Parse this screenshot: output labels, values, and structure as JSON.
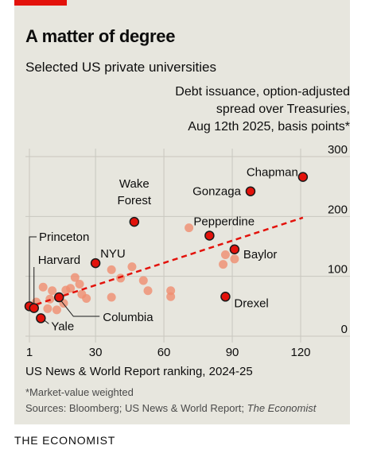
{
  "header": {
    "title": "A matter of degree",
    "subtitle": "Selected US private universities"
  },
  "chart_data": {
    "type": "scatter",
    "title": "A matter of degree",
    "subtitle": "Selected US private universities",
    "ylabel_lines": [
      "Debt issuance, option-adjusted",
      "spread over Treasuries,",
      "Aug 12th 2025, basis points*"
    ],
    "xlabel": "US News & World Report ranking, 2024-25",
    "xlim": [
      0,
      130
    ],
    "ylim": [
      0,
      300
    ],
    "x_ticks": [
      1,
      30,
      60,
      90,
      120
    ],
    "x_tick_labels": [
      "1",
      "30",
      "60",
      "90",
      "120"
    ],
    "y_ticks": [
      0,
      100,
      200,
      300
    ],
    "y_tick_labels": [
      "0",
      "100",
      "200",
      "300"
    ],
    "grid": true,
    "y_axis_side": "right",
    "highlighted_points": [
      {
        "label": "Chapman",
        "x": 121,
        "y": 266
      },
      {
        "label": "Gonzaga",
        "x": 98,
        "y": 242
      },
      {
        "label": "Wake Forest",
        "x": 47,
        "y": 191
      },
      {
        "label": "Pepperdine",
        "x": 80,
        "y": 168
      },
      {
        "label": "Baylor",
        "x": 91,
        "y": 145
      },
      {
        "label": "NYU",
        "x": 30,
        "y": 122
      },
      {
        "label": "Drexel",
        "x": 87,
        "y": 66
      },
      {
        "label": "Princeton",
        "x": 1,
        "y": 50
      },
      {
        "label": "Harvard",
        "x": 3,
        "y": 47
      },
      {
        "label": "Columbia",
        "x": 14,
        "y": 65
      },
      {
        "label": "Yale",
        "x": 6,
        "y": 30
      }
    ],
    "other_points": [
      {
        "x": 71,
        "y": 181
      },
      {
        "x": 87,
        "y": 136
      },
      {
        "x": 91,
        "y": 129
      },
      {
        "x": 86,
        "y": 120
      },
      {
        "x": 46,
        "y": 116
      },
      {
        "x": 37,
        "y": 111
      },
      {
        "x": 41,
        "y": 97
      },
      {
        "x": 51,
        "y": 93
      },
      {
        "x": 21,
        "y": 98
      },
      {
        "x": 23,
        "y": 87
      },
      {
        "x": 19,
        "y": 80
      },
      {
        "x": 7,
        "y": 82
      },
      {
        "x": 11,
        "y": 76
      },
      {
        "x": 17,
        "y": 77
      },
      {
        "x": 53,
        "y": 76
      },
      {
        "x": 63,
        "y": 76
      },
      {
        "x": 63,
        "y": 66
      },
      {
        "x": 37,
        "y": 65
      },
      {
        "x": 26,
        "y": 63
      },
      {
        "x": 16,
        "y": 55
      },
      {
        "x": 13,
        "y": 44
      },
      {
        "x": 9,
        "y": 46
      },
      {
        "x": 4,
        "y": 57
      },
      {
        "x": 10,
        "y": 62
      },
      {
        "x": 24,
        "y": 70
      }
    ],
    "trendline": {
      "x": [
        4,
        121
      ],
      "y": [
        53,
        198
      ],
      "style": "dashed"
    },
    "colors": {
      "highlight": "#e3120b",
      "other": "#f08d6f",
      "trend": "#e3120b"
    }
  },
  "footer": {
    "xlabel": "US News & World Report ranking, 2024-25",
    "footnote": "*Market-value weighted",
    "sources_prefix": "Sources: Bloomberg; US News & World Report; ",
    "sources_italic": "The Economist",
    "brand": "THE ECONOMIST"
  }
}
